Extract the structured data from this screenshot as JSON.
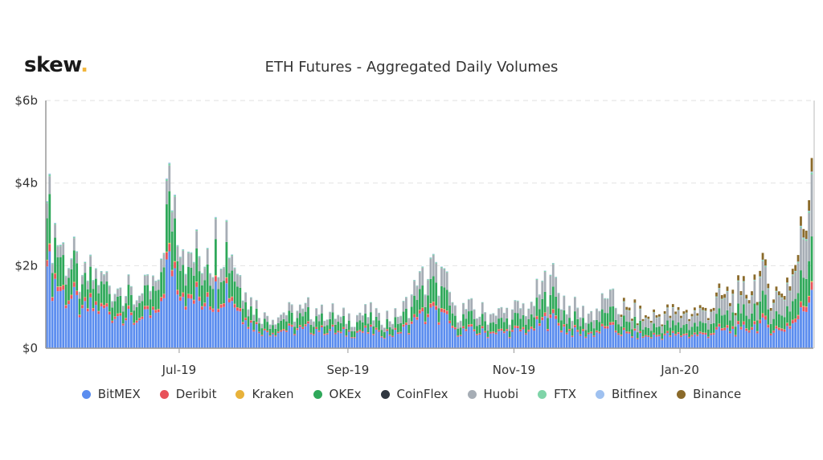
{
  "brand": {
    "name": "skew",
    "dot": ".",
    "dot_color": "#f2b53a"
  },
  "chart_data": {
    "type": "bar",
    "stacked": true,
    "title": "ETH Futures - Aggregated Daily Volumes",
    "xlabel": "",
    "ylabel": "",
    "ylim": [
      0,
      6
    ],
    "y_unit": "billion USD",
    "y_ticks": [
      0,
      2,
      4,
      6
    ],
    "y_tick_labels": [
      "$0",
      "$2b",
      "$4b",
      "$6b"
    ],
    "x_tick_labels": [
      "Jul-19",
      "Sep-19",
      "Nov-19",
      "Jan-20"
    ],
    "grid": true,
    "legend_position": "bottom",
    "series": [
      {
        "name": "BitMEX",
        "color": "#5b8def"
      },
      {
        "name": "Deribit",
        "color": "#e8525a"
      },
      {
        "name": "Kraken",
        "color": "#e8b23a"
      },
      {
        "name": "OKEx",
        "color": "#2fa85a"
      },
      {
        "name": "CoinFlex",
        "color": "#2f3640"
      },
      {
        "name": "Huobi",
        "color": "#a6adb5"
      },
      {
        "name": "FTX",
        "color": "#7fd4a8"
      },
      {
        "name": "Bitfinex",
        "color": "#9fc1f0"
      },
      {
        "name": "Binance",
        "color": "#8a6a2a"
      }
    ],
    "dates": [
      "2019-05-13",
      "2019-05-19",
      "2019-05-26",
      "2019-06-02",
      "2019-06-09",
      "2019-06-16",
      "2019-06-23",
      "2019-06-27",
      "2019-07-04",
      "2019-07-11",
      "2019-07-18",
      "2019-07-25",
      "2019-08-01",
      "2019-08-08",
      "2019-08-15",
      "2019-08-22",
      "2019-08-29",
      "2019-09-05",
      "2019-09-12",
      "2019-09-19",
      "2019-09-26",
      "2019-10-03",
      "2019-10-10",
      "2019-10-17",
      "2019-10-24",
      "2019-10-31",
      "2019-11-07",
      "2019-11-14",
      "2019-11-21",
      "2019-11-28",
      "2019-12-05",
      "2019-12-12",
      "2019-12-19",
      "2019-12-26",
      "2020-01-02",
      "2020-01-09",
      "2020-01-16",
      "2020-01-23",
      "2020-01-30",
      "2020-02-06",
      "2020-02-13",
      "2020-02-18"
    ],
    "totals": [
      3.6,
      2.6,
      1.8,
      1.9,
      1.5,
      1.3,
      1.7,
      4.6,
      2.4,
      2.5,
      3.2,
      1.4,
      0.9,
      0.9,
      1.0,
      1.1,
      0.8,
      0.9,
      0.9,
      0.8,
      1.6,
      2.2,
      1.1,
      1.0,
      0.9,
      1.0,
      1.2,
      1.9,
      1.1,
      0.9,
      1.3,
      1.0,
      0.8,
      0.9,
      0.9,
      1.0,
      1.3,
      1.4,
      1.9,
      1.4,
      2.3,
      4.7
    ]
  },
  "axis_tick_labels": {
    "y": [
      "$0",
      "$2b",
      "$4b",
      "$6b"
    ],
    "x": [
      "Jul-19",
      "Sep-19",
      "Nov-19",
      "Jan-20"
    ]
  },
  "legend": [
    "BitMEX",
    "Deribit",
    "Kraken",
    "OKEx",
    "CoinFlex",
    "Huobi",
    "FTX",
    "Bitfinex",
    "Binance"
  ]
}
